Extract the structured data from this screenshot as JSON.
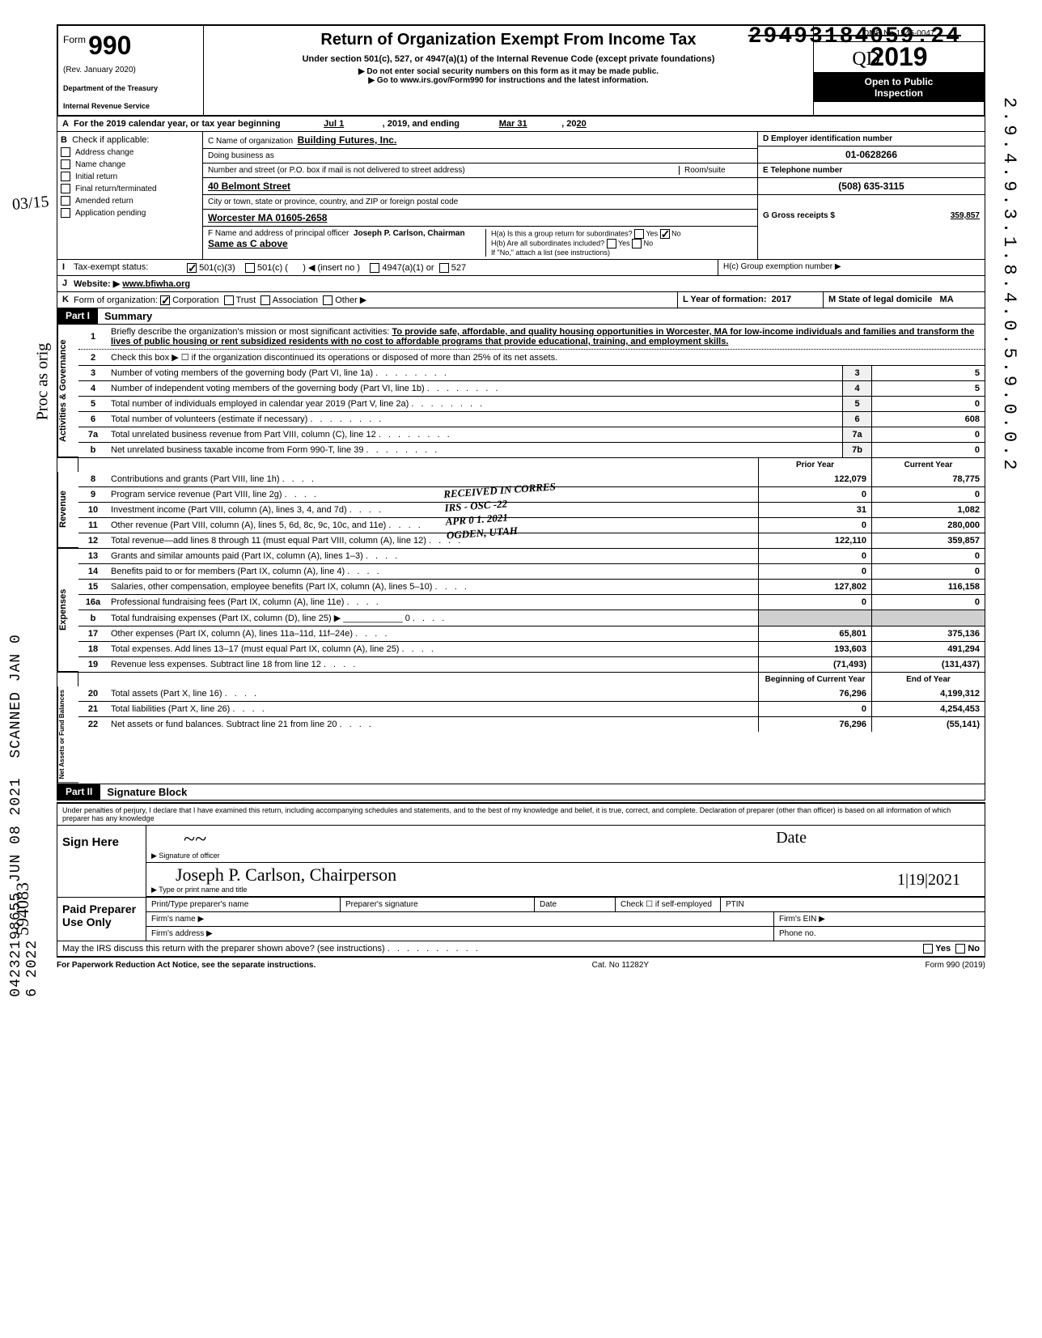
{
  "stamps": {
    "strike_number": "29493184059.24",
    "vertical_right": "2.9.4.9.3.1.8.4.0.5.9.0.0.2",
    "scanned_left": "SCANNED JAN 0 6 2022",
    "dln_left": "04232198655 JUN 08 2021",
    "hand_top": "03/15",
    "hand_mid": "Proc as orig",
    "hand_bot": "594083",
    "hand_qd": "QD"
  },
  "header": {
    "form_label": "Form",
    "form_no": "990",
    "rev": "(Rev. January 2020)",
    "dept1": "Department of the Treasury",
    "dept2": "Internal Revenue Service",
    "title": "Return of Organization Exempt From Income Tax",
    "subtitle": "Under section 501(c), 527, or 4947(a)(1) of the Internal Revenue Code (except private foundations)",
    "sub2a": "▶ Do not enter social security numbers on this form as it may be made public.",
    "sub2b": "▶ Go to www.irs.gov/Form990 for instructions and the latest information.",
    "omb": "OMB No 1545-0047",
    "year": "2019",
    "open1": "Open to Public",
    "open2": "Inspection"
  },
  "rowA": {
    "label": "A",
    "text1": "For the 2019 calendar year, or tax year beginning",
    "begin": "Jul 1",
    "text2": ", 2019, and ending",
    "end": "Mar 31",
    "text3": ", 20",
    "end_year": "20"
  },
  "colB": {
    "label": "B",
    "header": "Check if applicable:",
    "items": [
      "Address change",
      "Name change",
      "Initial return",
      "Final return/terminated",
      "Amended return",
      "Application pending"
    ]
  },
  "colC": {
    "name_lbl": "C Name of organization",
    "name": "Building Futures, Inc.",
    "dba_lbl": "Doing business as",
    "dba": "",
    "addr_lbl": "Number and street (or P.O. box if mail is not delivered to street address)",
    "addr": "40 Belmont Street",
    "room_lbl": "Room/suite",
    "city_lbl": "City or town, state or province, country, and ZIP or foreign postal code",
    "city": "Worcester MA 01605-2658",
    "f_lbl": "F Name and address of principal officer",
    "f_name": "Joseph P. Carlson, Chairman",
    "f_same": "Same as C above"
  },
  "colDE": {
    "d_lbl": "D Employer identification number",
    "d_val": "01-0628266",
    "e_lbl": "E Telephone number",
    "e_val": "(508) 635-3115",
    "g_lbl": "G Gross receipts $",
    "g_val": "359,857"
  },
  "rowH": {
    "h_a": "H(a) Is this a group return for subordinates?",
    "h_b": "H(b) Are all subordinates included?",
    "h_note": "If \"No,\" attach a list (see instructions)",
    "h_c": "H(c) Group exemption number ▶",
    "yes": "Yes",
    "no": "No"
  },
  "rowI": {
    "lbl": "I",
    "text": "Tax-exempt status:",
    "opt1": "501(c)(3)",
    "opt2": "501(c) (",
    "opt2b": ") ◀ (insert no )",
    "opt3": "4947(a)(1) or",
    "opt4": "527"
  },
  "rowJ": {
    "lbl": "J",
    "text": "Website: ▶",
    "val": "www.bfiwha.org"
  },
  "rowK": {
    "lbl": "K",
    "text": "Form of organization:",
    "opts": [
      "Corporation",
      "Trust",
      "Association",
      "Other ▶"
    ],
    "l_lbl": "L Year of formation:",
    "l_val": "2017",
    "m_lbl": "M State of legal domicile",
    "m_val": "MA"
  },
  "part1": {
    "label": "Part I",
    "title": "Summary"
  },
  "governance": {
    "tab": "Activities & Governance",
    "line1": {
      "no": "1",
      "text": "Briefly describe the organization's mission or most significant activities:",
      "val": "To provide safe, affordable, and quality housing opportunities in Worcester, MA for low-income individuals and families and transform the lives of public housing or rent subsidized residents with no cost to affordable programs that provide educational, training, and employment skills."
    },
    "line2": {
      "no": "2",
      "text": "Check this box ▶ ☐ if the organization discontinued its operations or disposed of more than 25% of its net assets."
    },
    "lines": [
      {
        "no": "3",
        "text": "Number of voting members of the governing body (Part VI, line 1a)",
        "box": "3",
        "val": "5"
      },
      {
        "no": "4",
        "text": "Number of independent voting members of the governing body (Part VI, line 1b)",
        "box": "4",
        "val": "5"
      },
      {
        "no": "5",
        "text": "Total number of individuals employed in calendar year 2019 (Part V, line 2a)",
        "box": "5",
        "val": "0"
      },
      {
        "no": "6",
        "text": "Total number of volunteers (estimate if necessary)",
        "box": "6",
        "val": "608"
      },
      {
        "no": "7a",
        "text": "Total unrelated business revenue from Part VIII, column (C), line 12",
        "box": "7a",
        "val": "0"
      },
      {
        "no": "b",
        "text": "Net unrelated business taxable income from Form 990-T, line 39",
        "box": "7b",
        "val": "0"
      }
    ]
  },
  "two_col_header": {
    "prior": "Prior Year",
    "current": "Current Year"
  },
  "revenue": {
    "tab": "Revenue",
    "lines": [
      {
        "no": "8",
        "text": "Contributions and grants (Part VIII, line 1h)",
        "prior": "122,079",
        "curr": "78,775"
      },
      {
        "no": "9",
        "text": "Program service revenue (Part VIII, line 2g)",
        "prior": "0",
        "curr": "0"
      },
      {
        "no": "10",
        "text": "Investment income (Part VIII, column (A), lines 3, 4, and 7d)",
        "prior": "31",
        "curr": "1,082"
      },
      {
        "no": "11",
        "text": "Other revenue (Part VIII, column (A), lines 5, 6d, 8c, 9c, 10c, and 11e)",
        "prior": "0",
        "curr": "280,000"
      },
      {
        "no": "12",
        "text": "Total revenue—add lines 8 through 11 (must equal Part VIII, column (A), line 12)",
        "prior": "122,110",
        "curr": "359,857"
      }
    ]
  },
  "expenses": {
    "tab": "Expenses",
    "lines": [
      {
        "no": "13",
        "text": "Grants and similar amounts paid (Part IX, column (A), lines 1–3)",
        "prior": "0",
        "curr": "0"
      },
      {
        "no": "14",
        "text": "Benefits paid to or for members (Part IX, column (A), line 4)",
        "prior": "0",
        "curr": "0"
      },
      {
        "no": "15",
        "text": "Salaries, other compensation, employee benefits (Part IX, column (A), lines 5–10)",
        "prior": "127,802",
        "curr": "116,158"
      },
      {
        "no": "16a",
        "text": "Professional fundraising fees (Part IX, column (A), line 11e)",
        "prior": "0",
        "curr": "0"
      },
      {
        "no": "b",
        "text": "Total fundraising expenses (Part IX, column (D), line 25) ▶ ____________ 0",
        "prior": "",
        "curr": "",
        "shaded": true
      },
      {
        "no": "17",
        "text": "Other expenses (Part IX, column (A), lines 11a–11d, 11f–24e)",
        "prior": "65,801",
        "curr": "375,136"
      },
      {
        "no": "18",
        "text": "Total expenses. Add lines 13–17 (must equal Part IX, column (A), line 25)",
        "prior": "193,603",
        "curr": "491,294"
      },
      {
        "no": "19",
        "text": "Revenue less expenses. Subtract line 18 from line 12",
        "prior": "(71,493)",
        "curr": "(131,437)"
      }
    ]
  },
  "nab_header": {
    "begin": "Beginning of Current Year",
    "end": "End of Year"
  },
  "netassets": {
    "tab": "Net Assets or Fund Balances",
    "lines": [
      {
        "no": "20",
        "text": "Total assets (Part X, line 16)",
        "prior": "76,296",
        "curr": "4,199,312"
      },
      {
        "no": "21",
        "text": "Total liabilities (Part X, line 26)",
        "prior": "0",
        "curr": "4,254,453"
      },
      {
        "no": "22",
        "text": "Net assets or fund balances. Subtract line 21 from line 20",
        "prior": "76,296",
        "curr": "(55,141)"
      }
    ]
  },
  "part2": {
    "label": "Part II",
    "title": "Signature Block"
  },
  "penalty": "Under penalties of perjury, I declare that I have examined this return, including accompanying schedules and statements, and to the best of my knowledge and belief, it is true, correct, and complete. Declaration of preparer (other than officer) is based on all information of which preparer has any knowledge",
  "sign": {
    "here": "Sign Here",
    "sig_lbl": "Signature of officer",
    "date_lbl": "Date",
    "name_lbl": "Type or print name and title",
    "name_val": "Joseph P. Carlson, Chairperson",
    "date_val": "1|19|2021"
  },
  "preparer": {
    "left": "Paid Preparer Use Only",
    "col1": "Print/Type preparer's name",
    "col2": "Preparer's signature",
    "col3": "Date",
    "col4": "Check ☐ if self-employed",
    "col5": "PTIN",
    "firm_name": "Firm's name ▶",
    "firm_ein": "Firm's EIN ▶",
    "firm_addr": "Firm's address ▶",
    "phone": "Phone no."
  },
  "discuss": {
    "text": "May the IRS discuss this return with the preparer shown above? (see instructions)",
    "yes": "Yes",
    "no": "No"
  },
  "footer": {
    "left": "For Paperwork Reduction Act Notice, see the separate instructions.",
    "mid": "Cat. No  11282Y",
    "right": "Form 990 (2019)"
  },
  "received_stamp": {
    "l1": "RECEIVED IN CORRES",
    "l2": "IRS - OSC -22",
    "l3": "APR 0 1. 2021",
    "l4": "OGDEN, UTAH"
  }
}
